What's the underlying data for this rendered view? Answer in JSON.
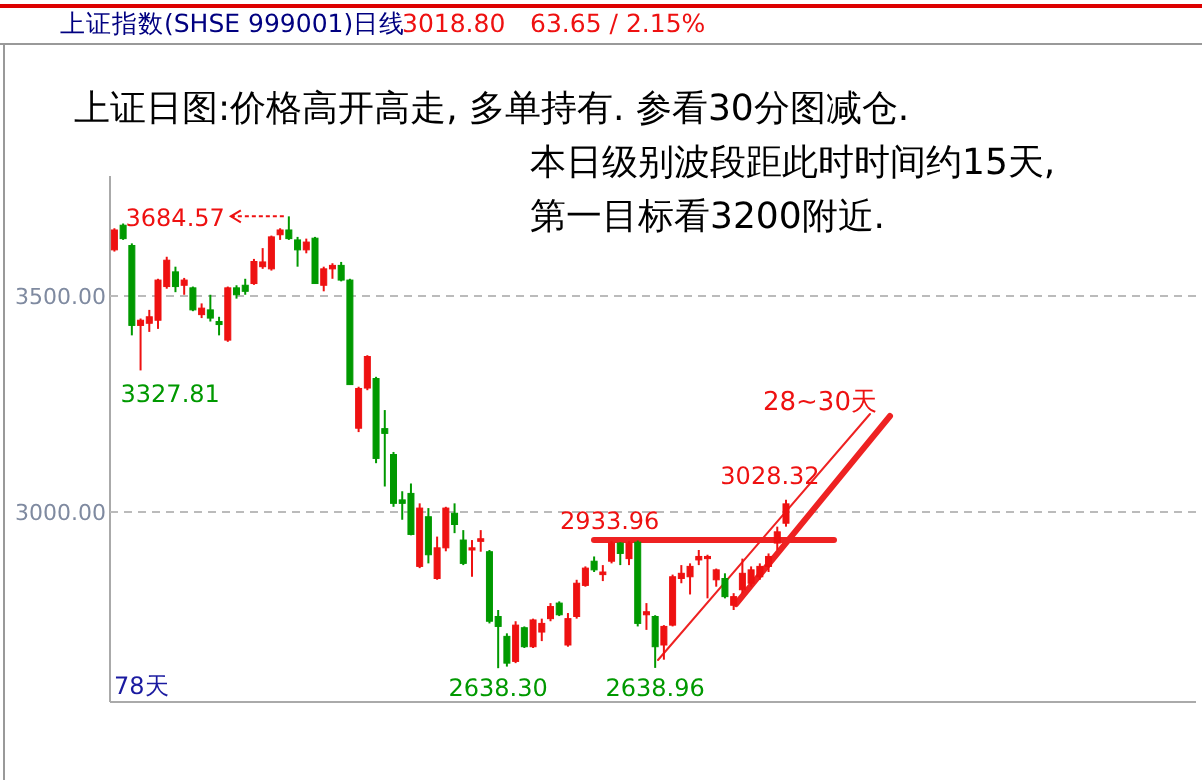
{
  "chart_data": {
    "type": "candlestick",
    "title": "上证指数(SHSE 999001)日线",
    "annotations": [
      "3018.80",
      "63.65 / 2.15%",
      "上证日图:价格高开高走, 多单持有. 参看30分图减仓.",
      "本日级别波段距此时时间约15天,",
      "第一目标看3200附近.",
      "78天",
      "3684.57",
      "3327.81",
      {
        "text": "2638.30",
        "y": 2638.3
      },
      {
        "text": "2638.96",
        "y": 2638.96
      },
      {
        "text": "2933.96",
        "y": 2933.96
      },
      "3028.32",
      "28~30天"
    ],
    "categories": [
      null,
      null,
      null,
      null,
      null,
      null,
      null,
      null,
      null,
      null,
      null,
      null,
      null,
      null,
      null,
      null,
      null,
      null,
      null,
      null,
      null,
      null,
      null,
      null,
      null,
      null,
      null,
      null,
      null,
      null,
      null,
      null,
      null,
      null,
      null,
      null,
      null,
      null,
      null,
      null,
      null,
      null,
      null,
      null,
      null,
      null,
      null,
      null,
      null,
      null,
      null,
      null,
      null,
      null,
      null,
      null,
      null,
      null,
      null,
      null,
      null,
      null,
      null,
      null,
      null,
      null,
      null,
      null,
      null,
      null,
      null,
      null,
      null,
      null,
      null,
      null,
      null,
      null
    ],
    "ohlc": [
      [
        3607,
        3657,
        3603,
        3653
      ],
      [
        3664,
        3668,
        3630,
        3633
      ],
      [
        3617,
        3622,
        3409,
        3432
      ],
      [
        3432,
        3448,
        3327.81,
        3444
      ],
      [
        3437,
        3468,
        3417,
        3452
      ],
      [
        3444,
        3540,
        3424,
        3537
      ],
      [
        3522,
        3591,
        3517,
        3583
      ],
      [
        3556,
        3568,
        3509,
        3522
      ],
      [
        3525,
        3542,
        3503,
        3537
      ],
      [
        3519,
        3522,
        3465,
        3468
      ],
      [
        3457,
        3483,
        3449,
        3472
      ],
      [
        3468,
        3503,
        3441,
        3449
      ],
      [
        3441,
        3452,
        3409,
        3434
      ],
      [
        3398,
        3522,
        3394,
        3519
      ],
      [
        3519,
        3525,
        3494,
        3503
      ],
      [
        3525,
        3540,
        3503,
        3511
      ],
      [
        3529,
        3586,
        3526,
        3580
      ],
      [
        3568,
        3611,
        3563,
        3579
      ],
      [
        3563,
        3640,
        3559,
        3637
      ],
      [
        3642,
        3657,
        3630,
        3653
      ],
      [
        3653,
        3684.57,
        3630,
        3633
      ],
      [
        3630,
        3637,
        3568,
        3607
      ],
      [
        3607,
        3633,
        3599,
        3625
      ],
      [
        3634,
        3637,
        3529,
        3529
      ],
      [
        3525,
        3568,
        3511,
        3563
      ],
      [
        3563,
        3576,
        3540,
        3571
      ],
      [
        3571,
        3579,
        3534,
        3537
      ],
      [
        3537,
        3540,
        3295,
        3295
      ],
      [
        3194,
        3290,
        3185,
        3286
      ],
      [
        3287,
        3363,
        3282,
        3360
      ],
      [
        3309,
        3313,
        3113,
        3124
      ],
      [
        3193,
        3236,
        3059,
        3182
      ],
      [
        3133,
        3139,
        3012,
        3020
      ],
      [
        3028,
        3048,
        2982,
        3020
      ],
      [
        3043,
        3066,
        2946,
        2948
      ],
      [
        2874,
        3020,
        2870,
        3009
      ],
      [
        2989,
        3009,
        2881,
        2901
      ],
      [
        2846,
        2943,
        2843,
        2917
      ],
      [
        2917,
        3012,
        2909,
        3009
      ],
      [
        2997,
        3020,
        2951,
        2971
      ],
      [
        2935,
        2958,
        2877,
        2881
      ],
      [
        2912,
        2935,
        2850,
        2917
      ],
      [
        2932,
        2958,
        2908,
        2938
      ],
      [
        2908,
        2912,
        2742,
        2747
      ],
      [
        2758,
        2773,
        2638.3,
        2735
      ],
      [
        2712,
        2719,
        2642,
        2650
      ],
      [
        2654,
        2747,
        2650,
        2738
      ],
      [
        2732,
        2735,
        2685,
        2688
      ],
      [
        2688,
        2753,
        2685,
        2750
      ],
      [
        2722,
        2753,
        2701,
        2742
      ],
      [
        2753,
        2789,
        2747,
        2781
      ],
      [
        2789,
        2793,
        2759,
        2762
      ],
      [
        2692,
        2766,
        2688,
        2753
      ],
      [
        2758,
        2843,
        2753,
        2835
      ],
      [
        2830,
        2874,
        2827,
        2870
      ],
      [
        2886,
        2897,
        2861,
        2866
      ],
      [
        2855,
        2877,
        2840,
        2861
      ],
      [
        2886,
        2933,
        2881,
        2928
      ],
      [
        2928,
        2930,
        2877,
        2904
      ],
      [
        2892,
        2933,
        2877,
        2928
      ],
      [
        2930,
        2933.96,
        2735,
        2742
      ],
      [
        2762,
        2789,
        2727,
        2769
      ],
      [
        2758,
        2761,
        2638.96,
        2688
      ],
      [
        2692,
        2738,
        2658,
        2735
      ],
      [
        2738,
        2855,
        2735,
        2850
      ],
      [
        2846,
        2877,
        2835,
        2858
      ],
      [
        2850,
        2881,
        2809,
        2874
      ],
      [
        2889,
        2912,
        2877,
        2897
      ],
      [
        2892,
        2901,
        2800,
        2897
      ],
      [
        2843,
        2869,
        2827,
        2866
      ],
      [
        2846,
        2858,
        2800,
        2804
      ],
      [
        2784,
        2812,
        2773,
        2804
      ],
      [
        2820,
        2892,
        2812,
        2858
      ],
      [
        2835,
        2874,
        2827,
        2866
      ],
      [
        2850,
        2881,
        2843,
        2874
      ],
      [
        2874,
        2904,
        2861,
        2897
      ],
      [
        2928,
        2966,
        2912,
        2954
      ],
      [
        2974,
        3028.32,
        2966,
        3018.8
      ]
    ],
    "colors": [
      "#ee1111",
      "#009900",
      "#009900",
      "#ee1111",
      "#ee1111",
      "#ee1111",
      "#ee1111",
      "#009900",
      "#ee1111",
      "#009900",
      "#ee1111",
      "#009900",
      "#009900",
      "#ee1111",
      "#009900",
      "#009900",
      "#ee1111",
      "#ee1111",
      "#ee1111",
      "#ee1111",
      "#009900",
      "#009900",
      "#ee1111",
      "#009900",
      "#ee1111",
      "#ee1111",
      "#009900",
      "#009900",
      "#ee1111",
      "#ee1111",
      "#009900",
      "#009900",
      "#009900",
      "#009900",
      "#009900",
      "#ee1111",
      "#009900",
      "#ee1111",
      "#ee1111",
      "#009900",
      "#009900",
      "#ee1111",
      "#ee1111",
      "#009900",
      "#009900",
      "#009900",
      "#ee1111",
      "#009900",
      "#ee1111",
      "#ee1111",
      "#ee1111",
      "#009900",
      "#ee1111",
      "#ee1111",
      "#ee1111",
      "#009900",
      "#ee1111",
      "#ee1111",
      "#009900",
      "#ee1111",
      "#009900",
      "#ee1111",
      "#009900",
      "#ee1111",
      "#ee1111",
      "#ee1111",
      "#ee1111",
      "#ee1111",
      "#ee1111",
      "#ee1111",
      "#009900",
      "#ee1111",
      "#ee1111",
      "#ee1111",
      "#ee1111",
      "#ee1111",
      "#ee1111",
      "#ee1111"
    ],
    "ylim": [
      2560,
      3778
    ],
    "yticks": [
      {
        "value": 3500,
        "label": "3500.00"
      },
      {
        "value": 3000,
        "label": "3000.00"
      }
    ],
    "grid": "y",
    "tick_labels": "y"
  }
}
